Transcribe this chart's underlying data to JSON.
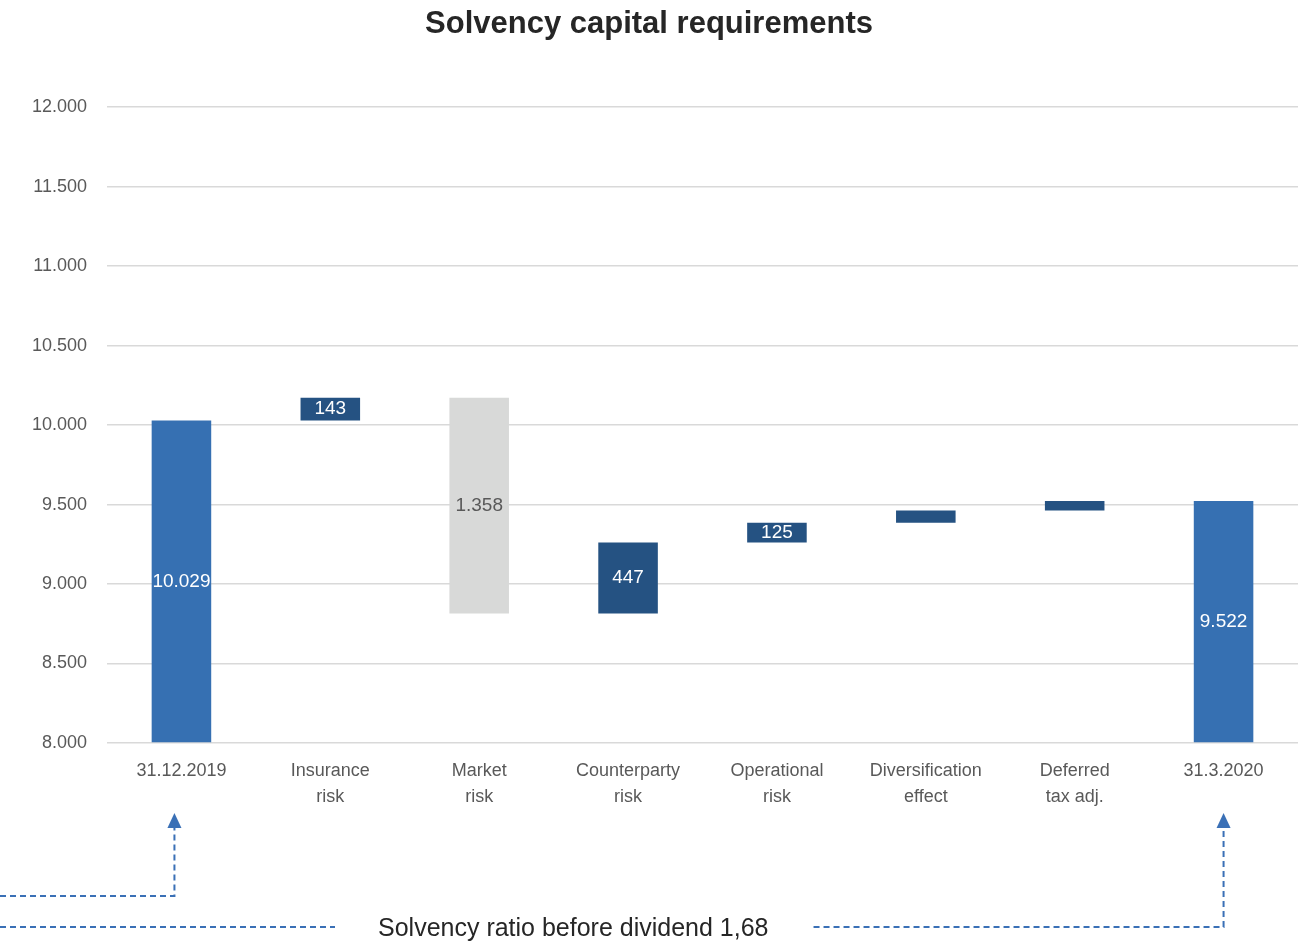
{
  "chart_data": {
    "type": "bar",
    "title": "Solvency capital requirements",
    "categories": [
      "31.12.2019",
      "Insurance risk",
      "Market risk",
      "Counterparty risk",
      "Operational risk",
      "Diversification effect",
      "Deferred tax adj.",
      "31.3.2020"
    ],
    "values": [
      10029,
      143,
      1358,
      447,
      125,
      76,
      60,
      9522
    ],
    "base": [
      null,
      10029,
      8814,
      8814,
      9261,
      9386,
      9462,
      null
    ],
    "colors": [
      "#3670b2",
      "#255282",
      "#d8d9d8",
      "#255282",
      "#255282",
      "#255282",
      "#255282",
      "#3670b2"
    ],
    "value_labels": [
      "10.029",
      "143",
      "1.358",
      "447",
      "125",
      null,
      null,
      "9.522"
    ],
    "ylim": [
      8000,
      12000
    ],
    "yticks": [
      {
        "value": 8000,
        "label": "8.000"
      },
      {
        "value": 8500,
        "label": "8.500"
      },
      {
        "value": 9000,
        "label": "9.000"
      },
      {
        "value": 9500,
        "label": "9.500"
      },
      {
        "value": 10000,
        "label": "10.000"
      },
      {
        "value": 10500,
        "label": "10.500"
      },
      {
        "value": 11000,
        "label": "11.000"
      },
      {
        "value": 11500,
        "label": "11.500"
      },
      {
        "value": 12000,
        "label": "12.000"
      }
    ],
    "grid": "y",
    "legend": false,
    "annotations": [
      "Solvency ratio before dividend 1,68"
    ]
  }
}
